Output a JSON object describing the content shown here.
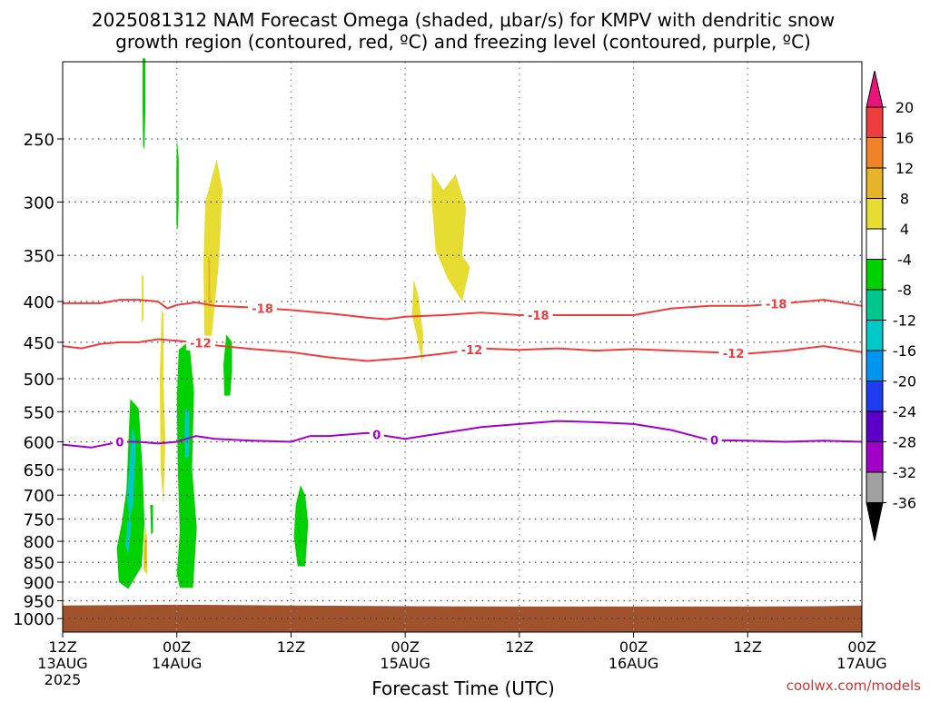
{
  "title": {
    "line1": "2025081312 NAM Forecast Omega (shaded, μbar/s) for KMPV with dendritic snow",
    "line2": "growth region (contoured, red, ºC) and freezing level (contoured, purple, ºC)"
  },
  "credit": "coolwx.com/models",
  "chart_data": {
    "type": "heatmap",
    "xlabel": "Forecast Time (UTC)",
    "ylabel": "",
    "x_range_hours": [
      0,
      84
    ],
    "x_ticks": [
      {
        "hour": 0,
        "label": "12Z",
        "sub": "13AUG",
        "sub2": "2025"
      },
      {
        "hour": 12,
        "label": "00Z",
        "sub": "14AUG",
        "sub2": ""
      },
      {
        "hour": 24,
        "label": "12Z",
        "sub": "",
        "sub2": ""
      },
      {
        "hour": 36,
        "label": "00Z",
        "sub": "15AUG",
        "sub2": ""
      },
      {
        "hour": 48,
        "label": "12Z",
        "sub": "",
        "sub2": ""
      },
      {
        "hour": 60,
        "label": "00Z",
        "sub": "16AUG",
        "sub2": ""
      },
      {
        "hour": 72,
        "label": "12Z",
        "sub": "",
        "sub2": ""
      },
      {
        "hour": 84,
        "label": "00Z",
        "sub": "17AUG",
        "sub2": ""
      }
    ],
    "y_scale": "log",
    "y_range_hPa": [
      200,
      1040
    ],
    "y_ticks": [
      250,
      300,
      350,
      400,
      450,
      500,
      550,
      600,
      650,
      700,
      750,
      800,
      850,
      900,
      950,
      1000
    ],
    "grid": true,
    "colorbar": {
      "labels": [
        "20",
        "16",
        "12",
        "8",
        "4",
        "-4",
        "-8",
        "-12",
        "-16",
        "-20",
        "-24",
        "-28",
        "-32",
        "-36"
      ],
      "label_values": [
        20,
        16,
        12,
        8,
        4,
        -4,
        -8,
        -12,
        -16,
        -20,
        -24,
        -28,
        -32,
        -36
      ],
      "top_arrow_color": "#e8147a",
      "bottom_arrow_color": "#000000",
      "bins": [
        {
          "from": 20,
          "to": 16,
          "color": "#f03c3c"
        },
        {
          "from": 16,
          "to": 12,
          "color": "#f08228"
        },
        {
          "from": 12,
          "to": 8,
          "color": "#e6b428"
        },
        {
          "from": 8,
          "to": 4,
          "color": "#e6dc32"
        },
        {
          "from": 4,
          "to": -4,
          "color": "#ffffff"
        },
        {
          "from": -4,
          "to": -8,
          "color": "#00d200"
        },
        {
          "from": -8,
          "to": -12,
          "color": "#00c88c"
        },
        {
          "from": -12,
          "to": -16,
          "color": "#00c8c8"
        },
        {
          "from": -16,
          "to": -20,
          "color": "#0096f0"
        },
        {
          "from": -20,
          "to": -24,
          "color": "#1e3cf0"
        },
        {
          "from": -24,
          "to": -28,
          "color": "#5a00c8"
        },
        {
          "from": -28,
          "to": -32,
          "color": "#a000c8"
        },
        {
          "from": -32,
          "to": -36,
          "color": "#a0a0a0"
        }
      ]
    },
    "ground_color": "#a0522d",
    "ground_top_hPa": [
      {
        "hour": 0,
        "p": 963
      },
      {
        "hour": 12,
        "p": 961
      },
      {
        "hour": 24,
        "p": 963
      },
      {
        "hour": 36,
        "p": 965
      },
      {
        "hour": 48,
        "p": 966
      },
      {
        "hour": 60,
        "p": 966
      },
      {
        "hour": 72,
        "p": 966
      },
      {
        "hour": 80,
        "p": 965
      },
      {
        "hour": 84,
        "p": 963
      }
    ],
    "omega_regions": [
      {
        "color": "#00d200",
        "points": [
          [
            8.4,
            198
          ],
          [
            8.7,
            198
          ],
          [
            8.7,
            230
          ],
          [
            8.6,
            258
          ],
          [
            8.45,
            255
          ],
          [
            8.4,
            230
          ]
        ]
      },
      {
        "color": "#00d200",
        "points": [
          [
            12.0,
            248
          ],
          [
            12.2,
            265
          ],
          [
            12.2,
            300
          ],
          [
            12.1,
            325
          ],
          [
            11.95,
            320
          ],
          [
            11.95,
            275
          ]
        ]
      },
      {
        "color": "#00d200",
        "points": [
          [
            17.2,
            440
          ],
          [
            17.8,
            450
          ],
          [
            17.8,
            490
          ],
          [
            17.6,
            525
          ],
          [
            17.0,
            525
          ],
          [
            16.9,
            480
          ]
        ]
      },
      {
        "color": "#00d200",
        "points": [
          [
            7.1,
            530
          ],
          [
            8.0,
            545
          ],
          [
            8.4,
            650
          ],
          [
            8.6,
            760
          ],
          [
            8.3,
            860
          ],
          [
            6.9,
            918
          ],
          [
            5.9,
            900
          ],
          [
            5.7,
            815
          ],
          [
            6.2,
            760
          ],
          [
            6.7,
            690
          ]
        ]
      },
      {
        "color": "#00d200",
        "points": [
          [
            12.2,
            460
          ],
          [
            13.3,
            448
          ],
          [
            13.8,
            520
          ],
          [
            13.6,
            650
          ],
          [
            14.1,
            770
          ],
          [
            13.7,
            915
          ],
          [
            12.3,
            915
          ],
          [
            12.0,
            880
          ],
          [
            12.3,
            780
          ],
          [
            12.1,
            650
          ],
          [
            12.0,
            530
          ]
        ]
      },
      {
        "color": "#00d200",
        "points": [
          [
            25.0,
            680
          ],
          [
            25.5,
            700
          ],
          [
            25.8,
            760
          ],
          [
            25.5,
            860
          ],
          [
            24.7,
            860
          ],
          [
            24.3,
            790
          ],
          [
            24.5,
            720
          ]
        ]
      },
      {
        "color": "#00d200",
        "points": [
          [
            9.2,
            720
          ],
          [
            9.5,
            720
          ],
          [
            9.5,
            780
          ],
          [
            9.3,
            785
          ]
        ]
      },
      {
        "color": "#00c8c8",
        "points": [
          [
            7.3,
            575
          ],
          [
            7.7,
            600
          ],
          [
            7.4,
            720
          ],
          [
            7.0,
            750
          ],
          [
            6.8,
            700
          ]
        ]
      },
      {
        "color": "#00c8c8",
        "points": [
          [
            6.9,
            740
          ],
          [
            7.2,
            760
          ],
          [
            6.9,
            830
          ],
          [
            6.6,
            810
          ]
        ]
      },
      {
        "color": "#00c8c8",
        "points": [
          [
            12.9,
            545
          ],
          [
            13.3,
            550
          ],
          [
            13.3,
            625
          ],
          [
            12.9,
            630
          ],
          [
            12.8,
            590
          ]
        ]
      },
      {
        "color": "#e6dc32",
        "points": [
          [
            16.2,
            265
          ],
          [
            16.8,
            290
          ],
          [
            16.4,
            360
          ],
          [
            15.6,
            450
          ],
          [
            14.9,
            440
          ],
          [
            14.8,
            360
          ],
          [
            15.0,
            300
          ]
        ]
      },
      {
        "color": "#e6dc32",
        "points": [
          [
            8.3,
            370
          ],
          [
            8.5,
            372
          ],
          [
            8.5,
            420
          ],
          [
            8.3,
            425
          ]
        ]
      },
      {
        "color": "#e6dc32",
        "points": [
          [
            10.4,
            410
          ],
          [
            10.6,
            415
          ],
          [
            10.6,
            500
          ],
          [
            10.8,
            600
          ],
          [
            10.6,
            720
          ],
          [
            10.3,
            650
          ],
          [
            10.2,
            500
          ]
        ]
      },
      {
        "color": "#e6dc32",
        "points": [
          [
            8.7,
            765
          ],
          [
            8.9,
            790
          ],
          [
            8.9,
            880
          ],
          [
            8.5,
            870
          ],
          [
            8.5,
            820
          ]
        ]
      },
      {
        "color": "#e6dc32",
        "points": [
          [
            38.8,
            275
          ],
          [
            40.0,
            290
          ],
          [
            41.3,
            277
          ],
          [
            42.4,
            305
          ],
          [
            42.0,
            350
          ],
          [
            42.8,
            362
          ],
          [
            42.0,
            400
          ],
          [
            40.5,
            375
          ],
          [
            39.2,
            345
          ],
          [
            38.8,
            300
          ]
        ]
      },
      {
        "color": "#e6dc32",
        "points": [
          [
            36.9,
            375
          ],
          [
            37.4,
            395
          ],
          [
            37.9,
            440
          ],
          [
            37.8,
            478
          ],
          [
            37.2,
            440
          ],
          [
            36.7,
            415
          ]
        ]
      },
      {
        "color": "#e6b428",
        "points": [
          [
            15.3,
            350
          ],
          [
            15.5,
            355
          ],
          [
            15.5,
            405
          ],
          [
            15.3,
            400
          ]
        ]
      },
      {
        "color": "#e6b428",
        "points": [
          [
            8.6,
            790
          ],
          [
            8.8,
            800
          ],
          [
            8.8,
            860
          ],
          [
            8.6,
            865
          ]
        ]
      }
    ],
    "contours": [
      {
        "name": "-18",
        "color": "#f03c3c",
        "label": "-18",
        "label_hours": [
          21,
          50,
          75
        ],
        "points": [
          [
            0,
            402
          ],
          [
            4,
            402
          ],
          [
            6,
            398
          ],
          [
            8,
            398
          ],
          [
            10,
            400
          ],
          [
            11,
            408
          ],
          [
            12,
            404
          ],
          [
            14,
            401
          ],
          [
            16,
            405
          ],
          [
            20,
            407
          ],
          [
            24,
            410
          ],
          [
            28,
            414
          ],
          [
            32,
            419
          ],
          [
            34,
            421
          ],
          [
            36,
            418
          ],
          [
            40,
            416
          ],
          [
            44,
            413
          ],
          [
            48,
            416
          ],
          [
            52,
            416
          ],
          [
            56,
            416
          ],
          [
            60,
            416
          ],
          [
            64,
            408
          ],
          [
            68,
            405
          ],
          [
            72,
            405
          ],
          [
            76,
            402
          ],
          [
            80,
            398
          ],
          [
            84,
            405
          ]
        ]
      },
      {
        "name": "-12",
        "color": "#f03c3c",
        "label": "-12",
        "label_hours": [
          14.5,
          43,
          70.5
        ],
        "points": [
          [
            0,
            455
          ],
          [
            2,
            458
          ],
          [
            4,
            452
          ],
          [
            6,
            450
          ],
          [
            8,
            450
          ],
          [
            10,
            446
          ],
          [
            12,
            448
          ],
          [
            14,
            450
          ],
          [
            16,
            454
          ],
          [
            20,
            459
          ],
          [
            24,
            463
          ],
          [
            28,
            470
          ],
          [
            32,
            475
          ],
          [
            36,
            471
          ],
          [
            40,
            465
          ],
          [
            44,
            458
          ],
          [
            48,
            460
          ],
          [
            52,
            458
          ],
          [
            56,
            461
          ],
          [
            60,
            459
          ],
          [
            64,
            461
          ],
          [
            68,
            463
          ],
          [
            72,
            465
          ],
          [
            76,
            461
          ],
          [
            80,
            455
          ],
          [
            84,
            463
          ]
        ]
      },
      {
        "name": "0",
        "color": "#a000c8",
        "label": "0",
        "label_hours": [
          6,
          33,
          68.5
        ],
        "points": [
          [
            0,
            605
          ],
          [
            3,
            610
          ],
          [
            6,
            600
          ],
          [
            8,
            600
          ],
          [
            10,
            603
          ],
          [
            12,
            600
          ],
          [
            14,
            590
          ],
          [
            16,
            595
          ],
          [
            20,
            598
          ],
          [
            24,
            600
          ],
          [
            26,
            590
          ],
          [
            28,
            590
          ],
          [
            32,
            585
          ],
          [
            36,
            595
          ],
          [
            40,
            585
          ],
          [
            44,
            575
          ],
          [
            48,
            570
          ],
          [
            52,
            565
          ],
          [
            56,
            567
          ],
          [
            60,
            570
          ],
          [
            64,
            580
          ],
          [
            68,
            597
          ],
          [
            72,
            598
          ],
          [
            76,
            600
          ],
          [
            80,
            598
          ],
          [
            84,
            600
          ]
        ]
      }
    ]
  }
}
